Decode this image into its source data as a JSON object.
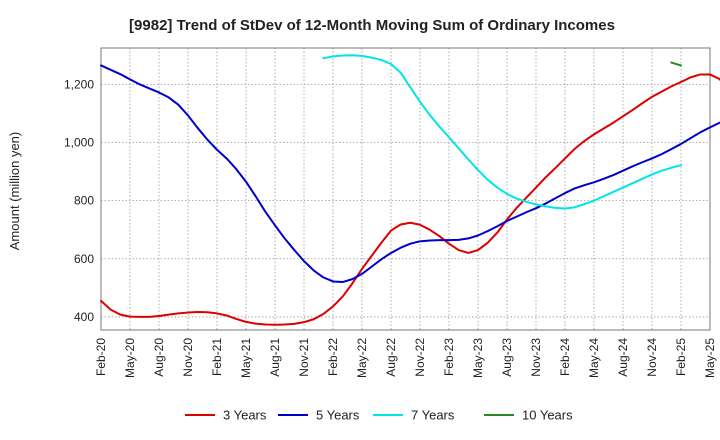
{
  "chart_data": {
    "type": "line",
    "title": "[9982]  Trend of StDev of 12-Month Moving Sum of Ordinary Incomes",
    "xlabel": "",
    "ylabel": "Amount (million yen)",
    "ylim": [
      355,
      1325
    ],
    "yticks": [
      400,
      600,
      800,
      1000,
      1200
    ],
    "ytick_labels": [
      "400",
      "600",
      "800",
      "1,000",
      "1,200"
    ],
    "xticks": [
      "Feb-20",
      "May-20",
      "Aug-20",
      "Nov-20",
      "Feb-21",
      "May-21",
      "Aug-21",
      "Nov-21",
      "Feb-22",
      "May-22",
      "Aug-22",
      "Nov-22",
      "Feb-23",
      "May-23",
      "Aug-23",
      "Nov-23",
      "Feb-24",
      "May-24",
      "Aug-24",
      "Nov-24",
      "Feb-25",
      "May-25"
    ],
    "grid": true,
    "legend_position": "bottom",
    "series": [
      {
        "name": "3 Years",
        "color": "#dd0000",
        "start": "Feb-20",
        "values": [
          455,
          425,
          408,
          401,
          400,
          400,
          403,
          408,
          412,
          415,
          417,
          416,
          412,
          405,
          393,
          383,
          377,
          374,
          373,
          374,
          376,
          382,
          392,
          410,
          436,
          470,
          515,
          565,
          610,
          655,
          697,
          718,
          724,
          717,
          700,
          678,
          652,
          630,
          620,
          630,
          655,
          690,
          735,
          775,
          810,
          845,
          880,
          912,
          945,
          978,
          1005,
          1028,
          1048,
          1068,
          1090,
          1112,
          1135,
          1157,
          1175,
          1193,
          1208,
          1224,
          1234,
          1234,
          1218,
          1175
        ]
      },
      {
        "name": "5 Years",
        "color": "#0000cc",
        "start": "Feb-20",
        "values": [
          1265,
          1250,
          1235,
          1217,
          1200,
          1186,
          1172,
          1155,
          1130,
          1093,
          1050,
          1010,
          975,
          945,
          908,
          865,
          815,
          762,
          715,
          670,
          630,
          592,
          560,
          536,
          522,
          520,
          530,
          548,
          573,
          598,
          620,
          638,
          652,
          660,
          663,
          664,
          664,
          665,
          670,
          680,
          695,
          712,
          730,
          745,
          760,
          774,
          790,
          808,
          826,
          842,
          853,
          863,
          875,
          888,
          903,
          918,
          932,
          945,
          960,
          977,
          995,
          1015,
          1035,
          1052,
          1068
        ]
      },
      {
        "name": "7 Years",
        "color": "#00e5e5",
        "start": "Jan-22",
        "values": [
          1290,
          1296,
          1299,
          1300,
          1298,
          1292,
          1284,
          1270,
          1240,
          1190,
          1140,
          1095,
          1055,
          1018,
          980,
          942,
          905,
          872,
          845,
          823,
          807,
          796,
          787,
          780,
          775,
          773,
          777,
          788,
          800,
          815,
          830,
          845,
          860,
          875,
          890,
          903,
          913,
          922
        ]
      },
      {
        "name": "10 Years",
        "color": "#228b22",
        "start": "Jan-25",
        "values": [
          1275,
          1265
        ]
      }
    ]
  }
}
